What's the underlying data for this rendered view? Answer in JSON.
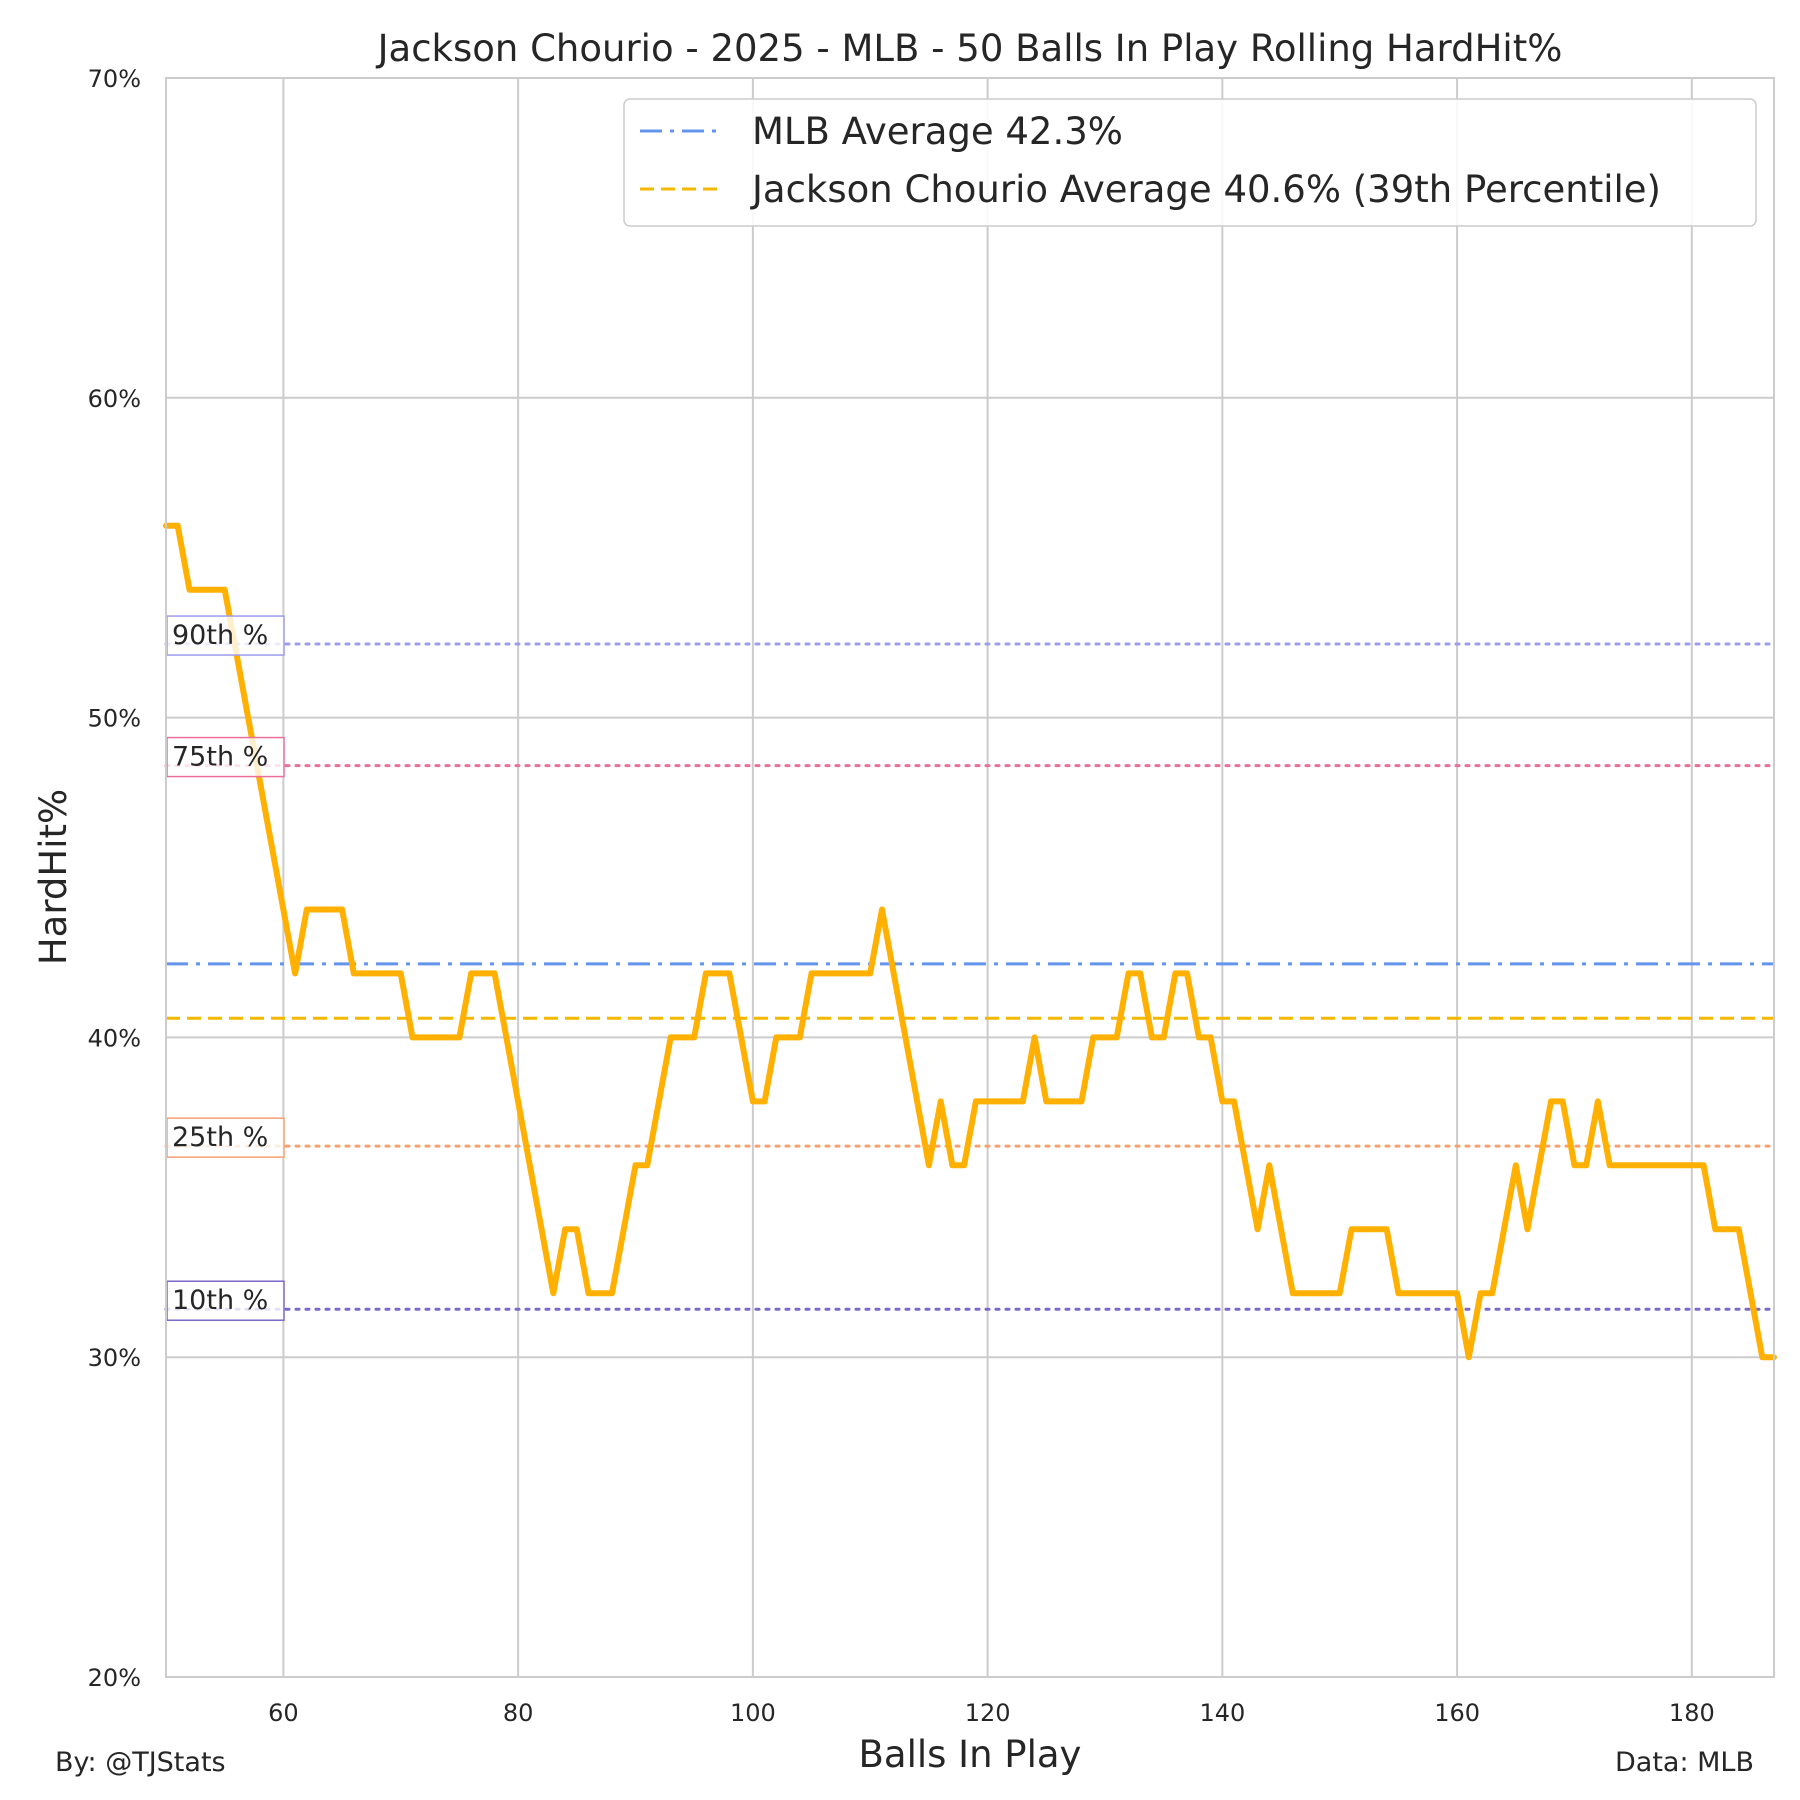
{
  "chart_data": {
    "type": "line",
    "title": "Jackson Chourio - 2025 - MLB - 50 Balls In Play Rolling HardHit%",
    "xlabel": "Balls In Play",
    "ylabel": "HardHit%",
    "xlim": [
      50,
      187
    ],
    "ylim": [
      20,
      70
    ],
    "x_ticks": [
      60,
      80,
      100,
      120,
      140,
      160,
      180
    ],
    "y_ticks": [
      20,
      30,
      40,
      50,
      60,
      70
    ],
    "y_tick_labels": [
      "20%",
      "30%",
      "40%",
      "50%",
      "60%",
      "70%"
    ],
    "grid": true,
    "legend_position": "top-right",
    "footer_left": "By: @TJStats",
    "footer_right": "Data: MLB",
    "reference_lines": [
      {
        "name": "MLB Average 42.3%",
        "value": 42.3,
        "color": "#6495ed",
        "style": "dashdot"
      },
      {
        "name": "Jackson Chourio Average 40.6% (39th Percentile)",
        "value": 40.6,
        "color": "#f5b800",
        "style": "dashed"
      }
    ],
    "percentile_lines": [
      {
        "label": "90th %",
        "value": 52.3,
        "color": "#9d9cef"
      },
      {
        "label": "75th %",
        "value": 48.5,
        "color": "#ea6f9a"
      },
      {
        "label": "25th %",
        "value": 36.6,
        "color": "#f8a06f"
      },
      {
        "label": "10th %",
        "value": 31.5,
        "color": "#7b68c8"
      }
    ],
    "series": [
      {
        "name": "Rolling HardHit%",
        "color": "#ffb000",
        "points": [
          [
            50,
            56
          ],
          [
            51,
            56
          ],
          [
            52,
            54
          ],
          [
            55,
            54
          ],
          [
            61,
            42
          ],
          [
            62,
            44
          ],
          [
            65,
            44
          ],
          [
            66,
            42
          ],
          [
            70,
            42
          ],
          [
            71,
            40
          ],
          [
            75,
            40
          ],
          [
            76,
            42
          ],
          [
            78,
            42
          ],
          [
            83,
            32
          ],
          [
            84,
            34
          ],
          [
            85,
            34
          ],
          [
            86,
            32
          ],
          [
            88,
            32
          ],
          [
            90,
            36
          ],
          [
            91,
            36
          ],
          [
            93,
            40
          ],
          [
            95,
            40
          ],
          [
            96,
            42
          ],
          [
            98,
            42
          ],
          [
            100,
            38
          ],
          [
            101,
            38
          ],
          [
            102,
            40
          ],
          [
            104,
            40
          ],
          [
            105,
            42
          ],
          [
            110,
            42
          ],
          [
            111,
            44
          ],
          [
            115,
            36
          ],
          [
            116,
            38
          ],
          [
            117,
            36
          ],
          [
            118,
            36
          ],
          [
            119,
            38
          ],
          [
            123,
            38
          ],
          [
            124,
            40
          ],
          [
            125,
            38
          ],
          [
            128,
            38
          ],
          [
            129,
            40
          ],
          [
            131,
            40
          ],
          [
            132,
            42
          ],
          [
            133,
            42
          ],
          [
            134,
            40
          ],
          [
            135,
            40
          ],
          [
            136,
            42
          ],
          [
            137,
            42
          ],
          [
            138,
            40
          ],
          [
            139,
            40
          ],
          [
            140,
            38
          ],
          [
            141,
            38
          ],
          [
            143,
            34
          ],
          [
            144,
            36
          ],
          [
            146,
            32
          ],
          [
            150,
            32
          ],
          [
            151,
            34
          ],
          [
            154,
            34
          ],
          [
            155,
            32
          ],
          [
            160,
            32
          ],
          [
            161,
            30
          ],
          [
            162,
            32
          ],
          [
            163,
            32
          ],
          [
            165,
            36
          ],
          [
            166,
            34
          ],
          [
            168,
            38
          ],
          [
            169,
            38
          ],
          [
            170,
            36
          ],
          [
            171,
            36
          ],
          [
            172,
            38
          ],
          [
            173,
            36
          ],
          [
            181,
            36
          ],
          [
            182,
            34
          ],
          [
            184,
            34
          ],
          [
            186,
            30
          ],
          [
            187,
            30
          ]
        ]
      }
    ]
  }
}
